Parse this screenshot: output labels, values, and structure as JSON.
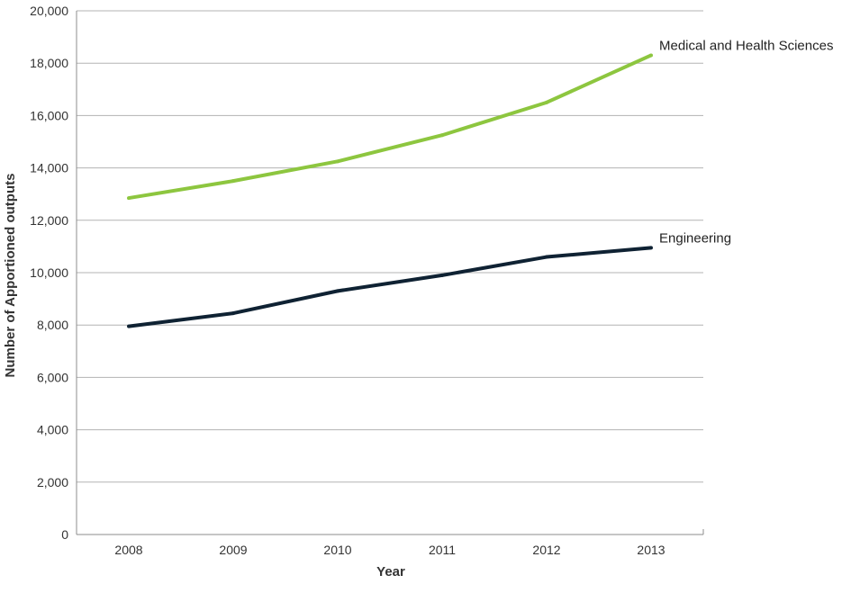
{
  "chart_data": {
    "type": "line",
    "title": "",
    "xlabel": "Year",
    "ylabel": "Number of Apportioned outputs",
    "categories": [
      "2008",
      "2009",
      "2010",
      "2011",
      "2012",
      "2013"
    ],
    "ylim": [
      0,
      20000
    ],
    "yticks": [
      0,
      2000,
      4000,
      6000,
      8000,
      10000,
      12000,
      14000,
      16000,
      18000,
      20000
    ],
    "ytick_labels": [
      "0",
      "2,000",
      "4,000",
      "6,000",
      "8,000",
      "10,000",
      "12,000",
      "14,000",
      "16,000",
      "18,000",
      "20,000"
    ],
    "grid": true,
    "legend": "inline-right",
    "series": [
      {
        "name": "Medical and Health Sciences",
        "color": "#8dc63f",
        "values": [
          12850,
          13500,
          14250,
          15250,
          16500,
          18300
        ]
      },
      {
        "name": "Engineering",
        "color": "#0f2233",
        "values": [
          7950,
          8450,
          9300,
          9900,
          10600,
          10950
        ]
      }
    ]
  }
}
